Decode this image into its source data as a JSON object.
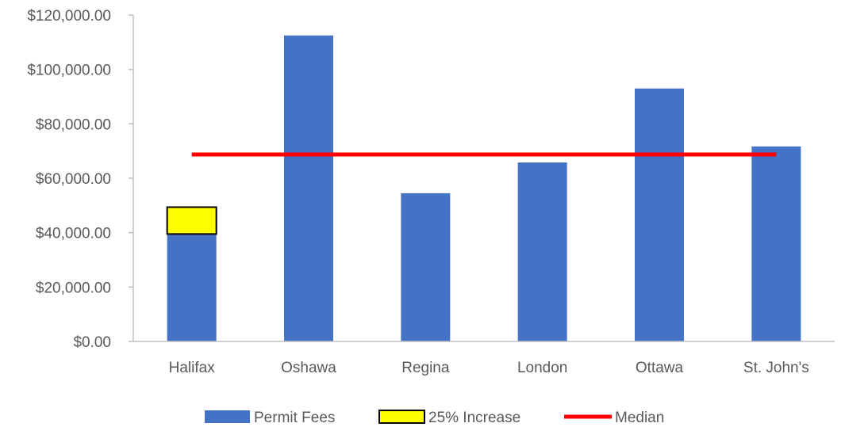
{
  "chart_data": {
    "type": "bar",
    "categories": [
      "Halifax",
      "Oshawa",
      "Regina",
      "London",
      "Ottawa",
      "St. John's"
    ],
    "series": [
      {
        "name": "Permit Fees",
        "type": "bar",
        "color": "#4472C4",
        "values": [
          39500,
          112500,
          54500,
          65800,
          93000,
          71700
        ]
      },
      {
        "name": "25% Increase",
        "type": "stacked-bar",
        "color": "#FFFF00",
        "border_color": "#000000",
        "values": [
          9875,
          null,
          null,
          null,
          null,
          null
        ]
      },
      {
        "name": "Median",
        "type": "line",
        "color": "#FF0000",
        "values": [
          68750,
          68750,
          68750,
          68750,
          68750,
          68750
        ]
      }
    ],
    "y_ticks": [
      "$0.00",
      "$20,000.00",
      "$40,000.00",
      "$60,000.00",
      "$80,000.00",
      "$100,000.00",
      "$120,000.00"
    ],
    "ylim": [
      0,
      120000
    ],
    "y_step": 20000,
    "grid": false,
    "legend_position": "bottom"
  }
}
